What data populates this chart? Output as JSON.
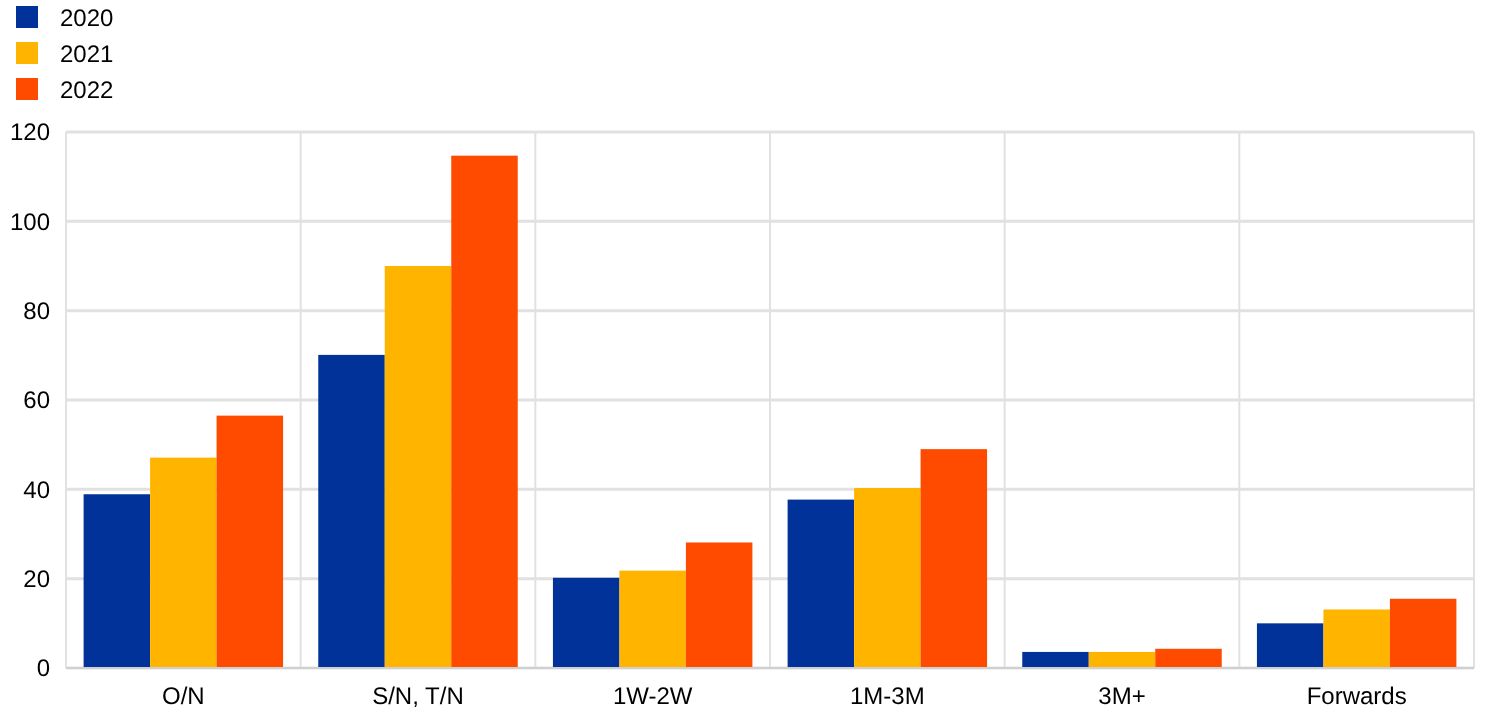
{
  "chart_data": {
    "type": "bar",
    "categories": [
      "O/N",
      "S/N, T/N",
      "1W-2W",
      "1M-3M",
      "3M+",
      "Forwards"
    ],
    "series": [
      {
        "name": "2020",
        "color": "#003299",
        "values": [
          38.9,
          70.1,
          20.2,
          37.7,
          3.6,
          10
        ]
      },
      {
        "name": "2021",
        "color": "#ffb400",
        "values": [
          47.1,
          90,
          21.8,
          40.3,
          3.6,
          13.1
        ]
      },
      {
        "name": "2022",
        "color": "#ff4b00",
        "values": [
          56.5,
          114.7,
          28.1,
          49,
          4.3,
          15.5
        ]
      }
    ],
    "ylim": [
      0,
      120
    ],
    "yticks": [
      0,
      20,
      40,
      60,
      80,
      100,
      120
    ],
    "grid": true,
    "legend": "top left"
  }
}
